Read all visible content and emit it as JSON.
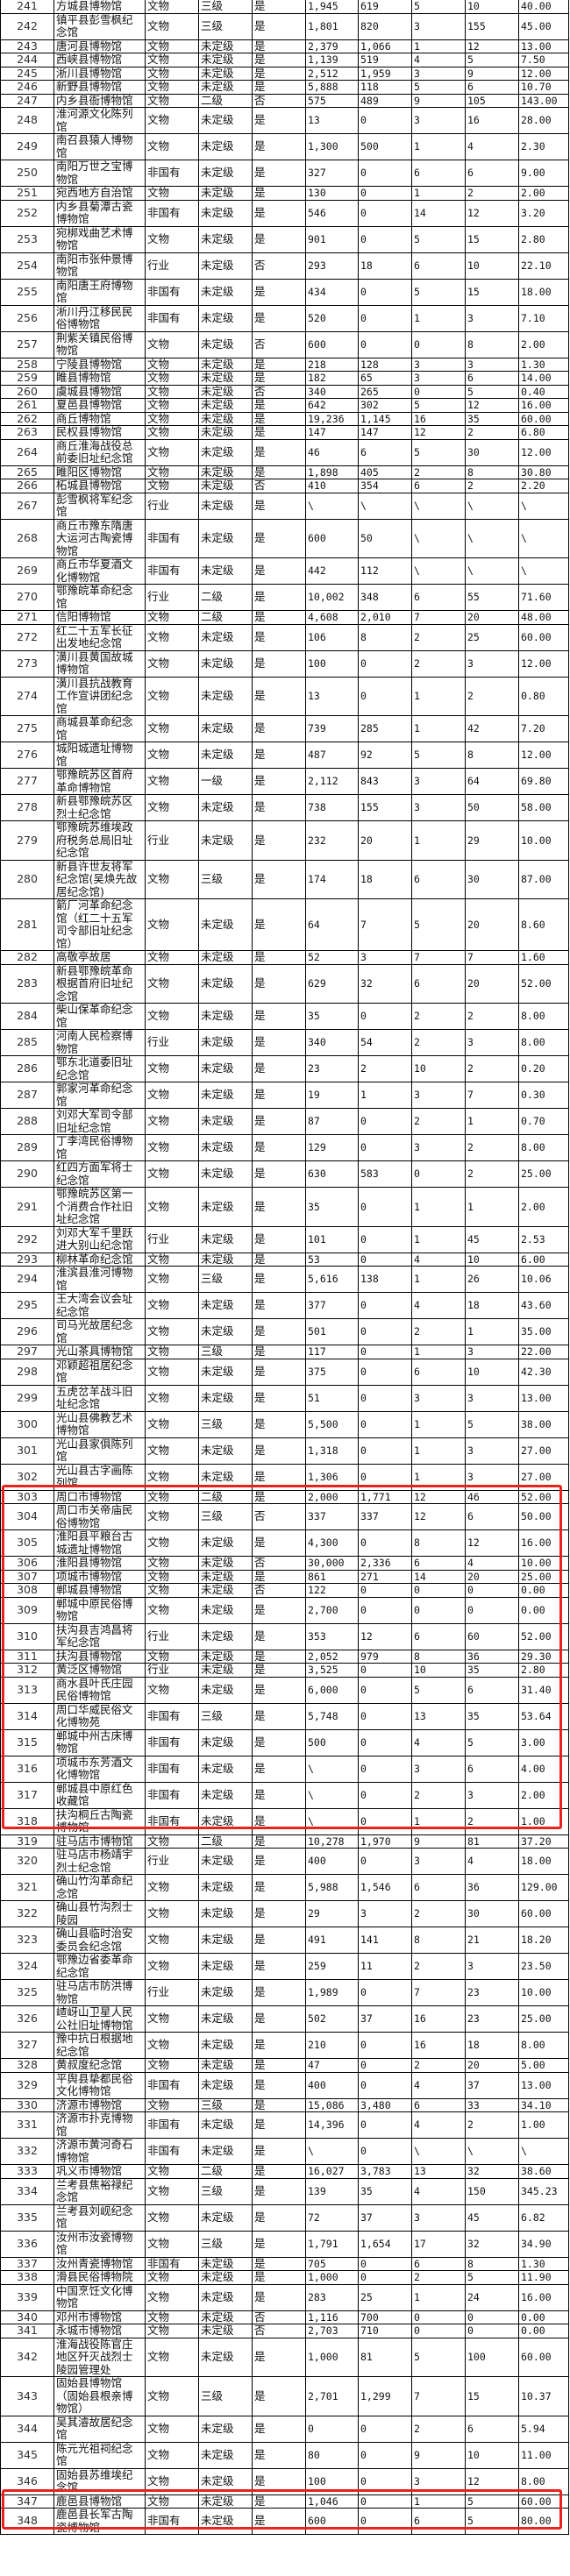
{
  "highlight_color": "#e8231f",
  "highlight_groups": [
    [
      303,
      318
    ],
    [
      347,
      348
    ]
  ],
  "rows": [
    [
      "241",
      "方城县博物馆",
      "文物",
      "三级",
      "是",
      "1,945",
      "619",
      "5",
      "10",
      "40.00"
    ],
    [
      "242",
      "镇平县彭雪枫纪念馆",
      "文物",
      "三级",
      "是",
      "1,801",
      "820",
      "3",
      "155",
      "45.00"
    ],
    [
      "243",
      "唐河县博物馆",
      "文物",
      "未定级",
      "是",
      "2,379",
      "1,066",
      "1",
      "12",
      "13.00"
    ],
    [
      "244",
      "西峡县博物馆",
      "文物",
      "未定级",
      "是",
      "1,139",
      "519",
      "4",
      "5",
      "7.50"
    ],
    [
      "245",
      "淅川县博物馆",
      "文物",
      "未定级",
      "是",
      "2,512",
      "1,959",
      "3",
      "9",
      "12.00"
    ],
    [
      "246",
      "新野县博物馆",
      "文物",
      "未定级",
      "是",
      "5,888",
      "118",
      "5",
      "6",
      "10.70"
    ],
    [
      "247",
      "内乡县衙博物馆",
      "文物",
      "二级",
      "否",
      "575",
      "489",
      "9",
      "105",
      "143.00"
    ],
    [
      "248",
      "淮河源文化陈列馆",
      "文物",
      "未定级",
      "是",
      "13",
      "0",
      "3",
      "16",
      "28.00"
    ],
    [
      "249",
      "南召县猿人博物馆",
      "文物",
      "未定级",
      "是",
      "1,300",
      "500",
      "1",
      "4",
      "2.30"
    ],
    [
      "250",
      "南阳万世之宝博物馆",
      "非国有",
      "未定级",
      "是",
      "327",
      "0",
      "6",
      "6",
      "9.00"
    ],
    [
      "251",
      "宛西地方自治馆",
      "文物",
      "未定级",
      "是",
      "130",
      "0",
      "1",
      "2",
      "2.00"
    ],
    [
      "252",
      "内乡县菊潭古瓷博物馆",
      "非国有",
      "未定级",
      "是",
      "546",
      "0",
      "14",
      "12",
      "3.20"
    ],
    [
      "253",
      "宛梆戏曲艺术博物馆",
      "文物",
      "未定级",
      "是",
      "901",
      "0",
      "5",
      "15",
      "2.80"
    ],
    [
      "254",
      "南阳市张仲景博物馆",
      "行业",
      "未定级",
      "否",
      "293",
      "18",
      "6",
      "10",
      "22.10"
    ],
    [
      "255",
      "南阳唐王府博物馆",
      "非国有",
      "未定级",
      "是",
      "434",
      "0",
      "5",
      "15",
      "18.00"
    ],
    [
      "256",
      "淅川丹江移民民俗博物馆",
      "非国有",
      "未定级",
      "是",
      "520",
      "0",
      "1",
      "3",
      "7.10"
    ],
    [
      "257",
      "荆紫关镇民俗博物馆",
      "文物",
      "未定级",
      "否",
      "600",
      "0",
      "0",
      "8",
      "2.00"
    ],
    [
      "258",
      "宁陵县博物馆",
      "文物",
      "未定级",
      "是",
      "218",
      "128",
      "3",
      "3",
      "1.30"
    ],
    [
      "259",
      "睢县博物馆",
      "文物",
      "未定级",
      "是",
      "182",
      "65",
      "3",
      "6",
      "14.00"
    ],
    [
      "260",
      "虞城县博物馆",
      "文物",
      "未定级",
      "否",
      "340",
      "265",
      "0",
      "5",
      "0.40"
    ],
    [
      "261",
      "夏邑县博物馆",
      "文物",
      "未定级",
      "是",
      "642",
      "302",
      "5",
      "12",
      "16.00"
    ],
    [
      "262",
      "商丘博物馆",
      "文物",
      "未定级",
      "是",
      "19,236",
      "1,145",
      "16",
      "35",
      "60.00"
    ],
    [
      "263",
      "民权县博物馆",
      "文物",
      "未定级",
      "是",
      "147",
      "147",
      "12",
      "2",
      "6.80"
    ],
    [
      "264",
      "商丘淮海战役总前委旧址纪念馆",
      "文物",
      "未定级",
      "是",
      "46",
      "6",
      "5",
      "30",
      "12.00"
    ],
    [
      "265",
      "睢阳区博物馆",
      "文物",
      "未定级",
      "是",
      "1,898",
      "405",
      "2",
      "8",
      "30.80"
    ],
    [
      "266",
      "柘城县博物馆",
      "文物",
      "未定级",
      "否",
      "410",
      "354",
      "6",
      "2",
      "2.20"
    ],
    [
      "267",
      "彭雪枫将军纪念馆",
      "行业",
      "未定级",
      "是",
      "\\",
      "\\",
      "\\",
      "\\",
      "\\"
    ],
    [
      "268",
      "商丘市豫东隋唐大运河古陶瓷博物馆",
      "非国有",
      "未定级",
      "是",
      "600",
      "50",
      "\\",
      "\\",
      "\\"
    ],
    [
      "269",
      "商丘市华夏酒文化博物馆",
      "非国有",
      "未定级",
      "是",
      "442",
      "112",
      "\\",
      "\\",
      "\\"
    ],
    [
      "270",
      "鄂豫皖革命纪念馆",
      "行业",
      "二级",
      "是",
      "10,002",
      "348",
      "6",
      "55",
      "71.60"
    ],
    [
      "271",
      "信阳博物馆",
      "文物",
      "二级",
      "是",
      "4,608",
      "2,010",
      "7",
      "20",
      "48.00"
    ],
    [
      "272",
      "红二十五军长征出发地纪念馆",
      "文物",
      "未定级",
      "是",
      "106",
      "8",
      "2",
      "25",
      "60.00"
    ],
    [
      "273",
      "潢川县黄国故城博物馆",
      "文物",
      "未定级",
      "是",
      "100",
      "0",
      "2",
      "3",
      "12.00"
    ],
    [
      "274",
      "潢川县抗战教育工作宣讲团纪念馆",
      "文物",
      "未定级",
      "是",
      "13",
      "0",
      "1",
      "2",
      "0.80"
    ],
    [
      "275",
      "商城县革命纪念馆",
      "文物",
      "未定级",
      "是",
      "739",
      "285",
      "1",
      "42",
      "7.20"
    ],
    [
      "276",
      "城阳城遗址博物馆",
      "文物",
      "未定级",
      "是",
      "487",
      "92",
      "5",
      "8",
      "12.00"
    ],
    [
      "277",
      "鄂豫皖苏区首府革命博物馆",
      "文物",
      "一级",
      "是",
      "2,112",
      "843",
      "3",
      "64",
      "69.80"
    ],
    [
      "278",
      "新县鄂豫皖苏区烈士纪念馆",
      "文物",
      "未定级",
      "是",
      "738",
      "155",
      "3",
      "50",
      "58.00"
    ],
    [
      "279",
      "鄂豫皖苏维埃政府税务总局旧址纪念馆",
      "行业",
      "未定级",
      "是",
      "232",
      "20",
      "1",
      "29",
      "10.00"
    ],
    [
      "280",
      "新县许世友将军纪念馆(吴焕先故居纪念馆)",
      "文物",
      "三级",
      "是",
      "174",
      "18",
      "6",
      "30",
      "87.00"
    ],
    [
      "281",
      "箭厂河革命纪念馆（红二十五军司令部旧址纪念馆）",
      "文物",
      "未定级",
      "是",
      "64",
      "7",
      "5",
      "20",
      "8.60"
    ],
    [
      "282",
      "高敬亭故居",
      "文物",
      "未定级",
      "是",
      "52",
      "3",
      "7",
      "7",
      "1.60"
    ],
    [
      "283",
      "新县鄂豫皖革命根据首府旧址纪念馆",
      "文物",
      "未定级",
      "是",
      "629",
      "32",
      "6",
      "20",
      "52.00"
    ],
    [
      "284",
      "柴山保革命纪念馆",
      "文物",
      "未定级",
      "是",
      "35",
      "0",
      "2",
      "2",
      "8.00"
    ],
    [
      "285",
      "河南人民检察博物馆",
      "行业",
      "未定级",
      "是",
      "340",
      "54",
      "2",
      "3",
      "8.00"
    ],
    [
      "286",
      "鄂东北道委旧址纪念馆",
      "文物",
      "未定级",
      "是",
      "23",
      "2",
      "10",
      "2",
      "0.20"
    ],
    [
      "287",
      "郭家河革命纪念馆",
      "文物",
      "未定级",
      "是",
      "19",
      "1",
      "3",
      "7",
      "0.30"
    ],
    [
      "288",
      "刘邓大军司令部旧址纪念馆",
      "文物",
      "未定级",
      "是",
      "87",
      "0",
      "2",
      "1",
      "0.70"
    ],
    [
      "289",
      "丁李湾民俗博物馆",
      "文物",
      "未定级",
      "是",
      "129",
      "0",
      "3",
      "2",
      "8.00"
    ],
    [
      "290",
      "红四方面军将士纪念馆",
      "文物",
      "未定级",
      "是",
      "630",
      "583",
      "0",
      "2",
      "25.00"
    ],
    [
      "291",
      "鄂豫皖苏区第一个消费合作社旧址纪念馆",
      "文物",
      "未定级",
      "是",
      "35",
      "0",
      "1",
      "1",
      "2.00"
    ],
    [
      "292",
      "刘邓大军千里跃进大别山纪念馆",
      "行业",
      "未定级",
      "是",
      "101",
      "0",
      "1",
      "45",
      "2.53"
    ],
    [
      "293",
      "柳林革命纪念馆",
      "文物",
      "未定级",
      "是",
      "53",
      "0",
      "4",
      "10",
      "6.00"
    ],
    [
      "294",
      "淮滨县淮河博物馆",
      "文物",
      "三级",
      "是",
      "5,616",
      "138",
      "1",
      "26",
      "10.06"
    ],
    [
      "295",
      "王大湾会议会址纪念馆",
      "文物",
      "未定级",
      "是",
      "377",
      "0",
      "4",
      "18",
      "43.60"
    ],
    [
      "296",
      "司马光故居纪念馆",
      "文物",
      "未定级",
      "是",
      "501",
      "0",
      "2",
      "1",
      "35.00"
    ],
    [
      "297",
      "光山茶具博物馆",
      "文物",
      "三级",
      "是",
      "117",
      "0",
      "1",
      "3",
      "22.00"
    ],
    [
      "298",
      "邓颖超祖居纪念馆",
      "文物",
      "未定级",
      "是",
      "375",
      "0",
      "6",
      "10",
      "42.30"
    ],
    [
      "299",
      "五虎岔羊战斗旧址纪念馆",
      "文物",
      "未定级",
      "是",
      "51",
      "0",
      "3",
      "3",
      "13.00"
    ],
    [
      "300",
      "光山县佛教艺术博物馆",
      "文物",
      "三级",
      "是",
      "5,500",
      "0",
      "1",
      "5",
      "38.00"
    ],
    [
      "301",
      "光山县家俱陈列馆",
      "文物",
      "未定级",
      "是",
      "1,318",
      "0",
      "1",
      "3",
      "27.00"
    ],
    [
      "302",
      "光山县古字画陈列馆",
      "文物",
      "未定级",
      "是",
      "1,306",
      "0",
      "1",
      "3",
      "27.00"
    ],
    [
      "303",
      "周口市博物馆",
      "文物",
      "二级",
      "是",
      "2,000",
      "1,771",
      "12",
      "46",
      "52.00"
    ],
    [
      "304",
      "周口市关帝庙民俗博物馆",
      "文物",
      "三级",
      "否",
      "337",
      "337",
      "12",
      "6",
      "50.00"
    ],
    [
      "305",
      "淮阳县平粮台古城遗址博物馆",
      "文物",
      "未定级",
      "是",
      "4,300",
      "0",
      "8",
      "12",
      "16.00"
    ],
    [
      "306",
      "淮阳县博物馆",
      "文物",
      "未定级",
      "否",
      "30,000",
      "2,336",
      "6",
      "4",
      "10.00"
    ],
    [
      "307",
      "项城市博物馆",
      "文物",
      "未定级",
      "是",
      "861",
      "271",
      "14",
      "20",
      "25.00"
    ],
    [
      "308",
      "郸城县博物馆",
      "文物",
      "未定级",
      "否",
      "122",
      "0",
      "0",
      "0",
      "0.00"
    ],
    [
      "309",
      "郸城中原民俗博物馆",
      "文物",
      "未定级",
      "是",
      "2,700",
      "0",
      "0",
      "0",
      "0.00"
    ],
    [
      "310",
      "扶沟县吉鸿昌将军纪念馆",
      "行业",
      "未定级",
      "是",
      "353",
      "12",
      "6",
      "60",
      "52.00"
    ],
    [
      "311",
      "扶沟县博物馆",
      "文物",
      "未定级",
      "是",
      "2,052",
      "979",
      "8",
      "36",
      "29.30"
    ],
    [
      "312",
      "黄泛区博物馆",
      "行业",
      "未定级",
      "是",
      "3,525",
      "0",
      "10",
      "35",
      "2.80"
    ],
    [
      "313",
      "商水县叶氏庄园民俗博物馆",
      "文物",
      "未定级",
      "是",
      "6,000",
      "0",
      "5",
      "6",
      "31.40"
    ],
    [
      "314",
      "周口华威民俗文化博物苑",
      "非国有",
      "三级",
      "是",
      "5,748",
      "0",
      "13",
      "35",
      "53.64"
    ],
    [
      "315",
      "郸城中州古床博物馆",
      "非国有",
      "未定级",
      "是",
      "500",
      "0",
      "4",
      "5",
      "3.00"
    ],
    [
      "316",
      "项城市东芳酒文化博物馆",
      "非国有",
      "未定级",
      "是",
      "\\",
      "0",
      "3",
      "6",
      "4.00"
    ],
    [
      "317",
      "郸城县中原红色收藏馆",
      "非国有",
      "未定级",
      "是",
      "\\",
      "0",
      "2",
      "3",
      "2.00"
    ],
    [
      "318",
      "扶沟桐丘古陶瓷博物馆",
      "非国有",
      "未定级",
      "是",
      "\\",
      "0",
      "1",
      "2",
      "1.00"
    ],
    [
      "319",
      "驻马店市博物馆",
      "文物",
      "二级",
      "是",
      "10,278",
      "1,970",
      "9",
      "81",
      "37.20"
    ],
    [
      "320",
      "驻马店市杨靖宇烈士纪念馆",
      "行业",
      "未定级",
      "是",
      "400",
      "0",
      "3",
      "4",
      "18.00"
    ],
    [
      "321",
      "确山竹沟革命纪念馆",
      "文物",
      "未定级",
      "是",
      "5,988",
      "1,546",
      "6",
      "36",
      "129.00"
    ],
    [
      "322",
      "确山县竹沟烈士陵园",
      "文物",
      "未定级",
      "是",
      "29",
      "3",
      "2",
      "30",
      "60.00"
    ],
    [
      "323",
      "确山县临时治安委员会纪念馆",
      "文物",
      "未定级",
      "是",
      "491",
      "141",
      "8",
      "21",
      "18.20"
    ],
    [
      "324",
      "鄂豫边省委革命纪念馆",
      "文物",
      "未定级",
      "是",
      "259",
      "11",
      "2",
      "3",
      "23.50"
    ],
    [
      "325",
      "驻马店市防洪博物馆",
      "行业",
      "未定级",
      "是",
      "1,989",
      "0",
      "7",
      "23",
      "10.00"
    ],
    [
      "326",
      "嵖岈山卫星人民公社旧址博物馆",
      "文物",
      "未定级",
      "是",
      "502",
      "37",
      "16",
      "23",
      "25.00"
    ],
    [
      "327",
      "豫中抗日根据地纪念馆",
      "文物",
      "未定级",
      "是",
      "210",
      "0",
      "16",
      "18",
      "8.00"
    ],
    [
      "328",
      "黄叔度纪念馆",
      "文物",
      "未定级",
      "是",
      "47",
      "0",
      "2",
      "20",
      "5.00"
    ],
    [
      "329",
      "平舆县挚都民俗文化博物馆",
      "非国有",
      "未定级",
      "是",
      "400",
      "0",
      "4",
      "37",
      "13.00"
    ],
    [
      "330",
      "济源市博物馆",
      "文物",
      "三级",
      "是",
      "15,086",
      "3,480",
      "6",
      "33",
      "34.10"
    ],
    [
      "331",
      "济源市扑克博物馆",
      "非国有",
      "未定级",
      "是",
      "14,396",
      "0",
      "4",
      "2",
      "1.00"
    ],
    [
      "332",
      "济源市黄河奇石博物馆",
      "非国有",
      "未定级",
      "是",
      "\\",
      "0",
      "\\",
      "\\",
      "\\"
    ],
    [
      "333",
      "巩义市博物馆",
      "文物",
      "二级",
      "是",
      "16,027",
      "3,783",
      "13",
      "32",
      "38.60"
    ],
    [
      "334",
      "兰考县焦裕禄纪念馆",
      "文物",
      "三级",
      "是",
      "139",
      "35",
      "4",
      "150",
      "345.23"
    ],
    [
      "335",
      "兰考县刘岘纪念馆",
      "文物",
      "未定级",
      "是",
      "72",
      "37",
      "3",
      "45",
      "6.82"
    ],
    [
      "336",
      "汝州市汝瓷博物馆",
      "文物",
      "三级",
      "是",
      "1,791",
      "1,654",
      "17",
      "32",
      "34.90"
    ],
    [
      "337",
      "汝州青瓷博物馆",
      "非国有",
      "未定级",
      "是",
      "705",
      "0",
      "6",
      "8",
      "1.30"
    ],
    [
      "338",
      "滑县民俗博物院",
      "文物",
      "未定级",
      "是",
      "1,000",
      "0",
      "2",
      "5",
      "11.90"
    ],
    [
      "339",
      "中国烹饪文化博物馆",
      "文物",
      "未定级",
      "是",
      "283",
      "25",
      "1",
      "24",
      "16.00"
    ],
    [
      "340",
      "邓州市博物馆",
      "文物",
      "未定级",
      "否",
      "1,116",
      "700",
      "0",
      "0",
      "0.00"
    ],
    [
      "341",
      "永城市博物馆",
      "文物",
      "未定级",
      "否",
      "2,703",
      "710",
      "0",
      "0",
      "0.00"
    ],
    [
      "342",
      "淮海战役陈官庄地区歼灭战烈士陵园管理处",
      "文物",
      "未定级",
      "是",
      "1,000",
      "81",
      "5",
      "100",
      "60.00"
    ],
    [
      "343",
      "固始县博物馆（固始县根亲博物馆）",
      "文物",
      "三级",
      "是",
      "2,701",
      "1,299",
      "7",
      "15",
      "10.37"
    ],
    [
      "344",
      "吴其濬故居纪念馆",
      "文物",
      "未定级",
      "是",
      "0",
      "0",
      "2",
      "6",
      "5.94"
    ],
    [
      "345",
      "陈元光祖祠纪念馆",
      "文物",
      "未定级",
      "是",
      "80",
      "0",
      "9",
      "10",
      "11.00"
    ],
    [
      "346",
      "固始县苏维埃纪念馆",
      "文物",
      "未定级",
      "是",
      "100",
      "0",
      "3",
      "12",
      "8.00"
    ],
    [
      "347",
      "鹿邑县博物馆",
      "文物",
      "未定级",
      "是",
      "1,046",
      "0",
      "1",
      "5",
      "60.00"
    ],
    [
      "348",
      "鹿邑县长军古陶瓷博物馆",
      "非国有",
      "未定级",
      "是",
      "600",
      "0",
      "6",
      "5",
      "80.00"
    ]
  ]
}
